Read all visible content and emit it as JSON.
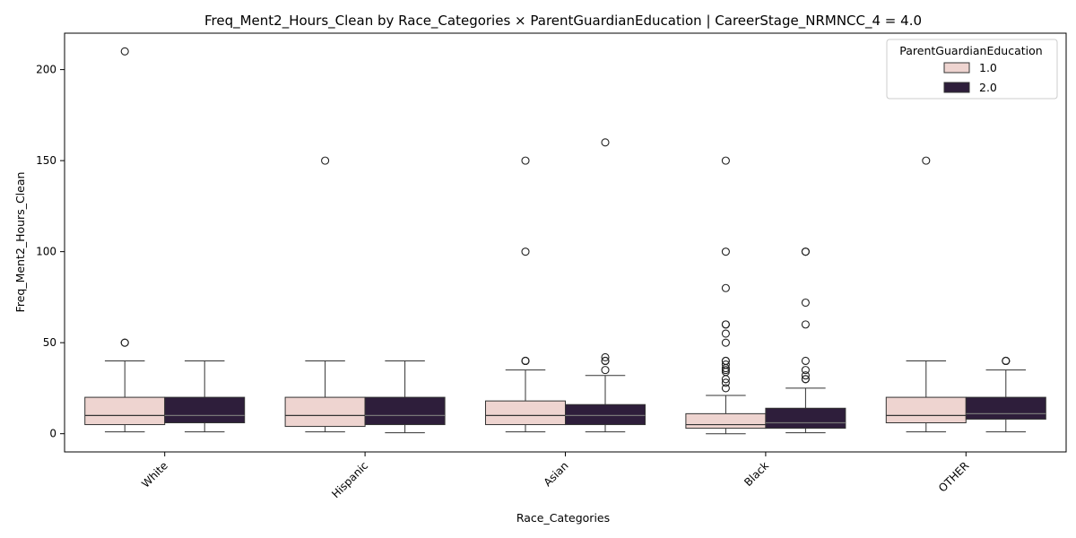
{
  "chart_data": {
    "type": "box",
    "title": "Freq_Ment2_Hours_Clean by Race_Categories × ParentGuardianEducation | CareerStage_NRMNCC_4 = 4.0",
    "xlabel": "Race_Categories",
    "ylabel": "Freq_Ment2_Hours_Clean",
    "ylim": [
      -10,
      220
    ],
    "yticks": [
      0,
      50,
      100,
      150,
      200
    ],
    "categories": [
      "White",
      "Hispanic",
      "Asian",
      "Black",
      "OTHER"
    ],
    "legend": {
      "title": "ParentGuardianEducation",
      "position": "top-right"
    },
    "series": [
      {
        "name": "1.0",
        "color": "#eed4d0",
        "boxes": [
          {
            "whisker_low": 1,
            "q1": 5,
            "median": 10,
            "q3": 20,
            "whisker_high": 40,
            "outliers": [
              50,
              50,
              210
            ]
          },
          {
            "whisker_low": 1,
            "q1": 4,
            "median": 10,
            "q3": 20,
            "whisker_high": 40,
            "outliers": [
              150
            ]
          },
          {
            "whisker_low": 1,
            "q1": 5,
            "median": 10,
            "q3": 18,
            "whisker_high": 35,
            "outliers": [
              40,
              40,
              40,
              100,
              150
            ]
          },
          {
            "whisker_low": 0,
            "q1": 3,
            "median": 5,
            "q3": 11,
            "whisker_high": 21,
            "outliers": [
              25,
              28,
              30,
              34,
              35,
              36,
              38,
              40,
              40,
              50,
              55,
              60,
              60,
              80,
              100,
              150
            ]
          },
          {
            "whisker_low": 1,
            "q1": 6,
            "median": 10,
            "q3": 20,
            "whisker_high": 40,
            "outliers": [
              150
            ]
          }
        ]
      },
      {
        "name": "2.0",
        "color": "#2e1e3b",
        "boxes": [
          {
            "whisker_low": 1,
            "q1": 6,
            "median": 10,
            "q3": 20,
            "whisker_high": 40,
            "outliers": []
          },
          {
            "whisker_low": 0.5,
            "q1": 5,
            "median": 10,
            "q3": 20,
            "whisker_high": 40,
            "outliers": []
          },
          {
            "whisker_low": 1,
            "q1": 5,
            "median": 10,
            "q3": 16,
            "whisker_high": 32,
            "outliers": [
              35,
              40,
              40,
              42,
              160
            ]
          },
          {
            "whisker_low": 0.5,
            "q1": 3,
            "median": 6,
            "q3": 14,
            "whisker_high": 25,
            "outliers": [
              30,
              30,
              32,
              35,
              40,
              60,
              72,
              100,
              100
            ]
          },
          {
            "whisker_low": 1,
            "q1": 8,
            "median": 11,
            "q3": 20,
            "whisker_high": 35,
            "outliers": [
              40,
              40,
              40
            ]
          }
        ]
      }
    ]
  }
}
